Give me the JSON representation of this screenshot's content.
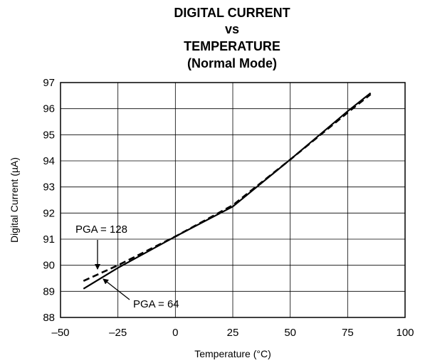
{
  "chart_data": {
    "type": "line",
    "title_lines": [
      "DIGITAL CURRENT",
      "vs",
      "TEMPERATURE",
      "(Normal Mode)"
    ],
    "xlabel": "Temperature (°C)",
    "ylabel": "Digital Current (µA)",
    "xlim": [
      -50,
      100
    ],
    "ylim": [
      88,
      97
    ],
    "xticks": [
      -50,
      -25,
      0,
      25,
      50,
      75,
      100
    ],
    "xtick_labels": [
      "–50",
      "–25",
      "0",
      "25",
      "50",
      "75",
      "100"
    ],
    "yticks": [
      88,
      89,
      90,
      91,
      92,
      93,
      94,
      95,
      96,
      97
    ],
    "ytick_labels": [
      "88",
      "89",
      "90",
      "91",
      "92",
      "93",
      "94",
      "95",
      "96",
      "97"
    ],
    "grid": true,
    "series": [
      {
        "name": "PGA = 64",
        "style": "solid",
        "x": [
          -40,
          -25,
          0,
          25,
          50,
          75,
          85
        ],
        "y": [
          89.1,
          89.9,
          91.1,
          92.25,
          94.05,
          95.9,
          96.6
        ]
      },
      {
        "name": "PGA = 128",
        "style": "dashed",
        "x": [
          -40,
          -25,
          0,
          25,
          50,
          75,
          85
        ],
        "y": [
          89.4,
          90.0,
          91.1,
          92.3,
          94.05,
          95.85,
          96.55
        ]
      }
    ],
    "annotations": [
      {
        "text": "PGA = 128",
        "series": "PGA = 128"
      },
      {
        "text": "PGA = 64",
        "series": "PGA = 64"
      }
    ]
  }
}
